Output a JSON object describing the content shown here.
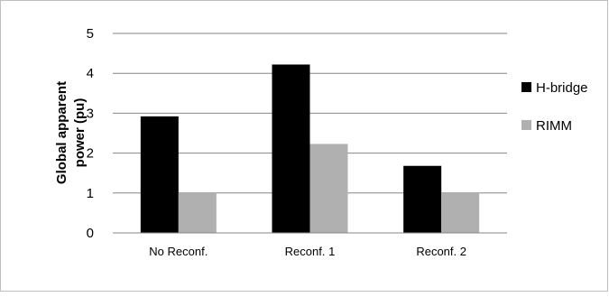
{
  "chart_data": {
    "type": "bar",
    "title": "",
    "xlabel": "",
    "ylabel_lines": [
      "Global apparent",
      "power (pu)"
    ],
    "categories": [
      "No Reconf.",
      "Reconf. 1",
      "Reconf. 2"
    ],
    "series": [
      {
        "name": "H-bridge",
        "color": "#000000",
        "values": [
          2.92,
          4.22,
          1.68
        ]
      },
      {
        "name": "RIMM",
        "color": "#b0b0b0",
        "values": [
          1.0,
          2.23,
          1.0
        ]
      }
    ],
    "ylim": [
      0,
      5
    ],
    "yticks": [
      "0",
      "1",
      "2",
      "3",
      "4",
      "5"
    ],
    "grid": true,
    "legend_position": "right",
    "gridline_color": "#868686",
    "axis_color": "#868686"
  }
}
